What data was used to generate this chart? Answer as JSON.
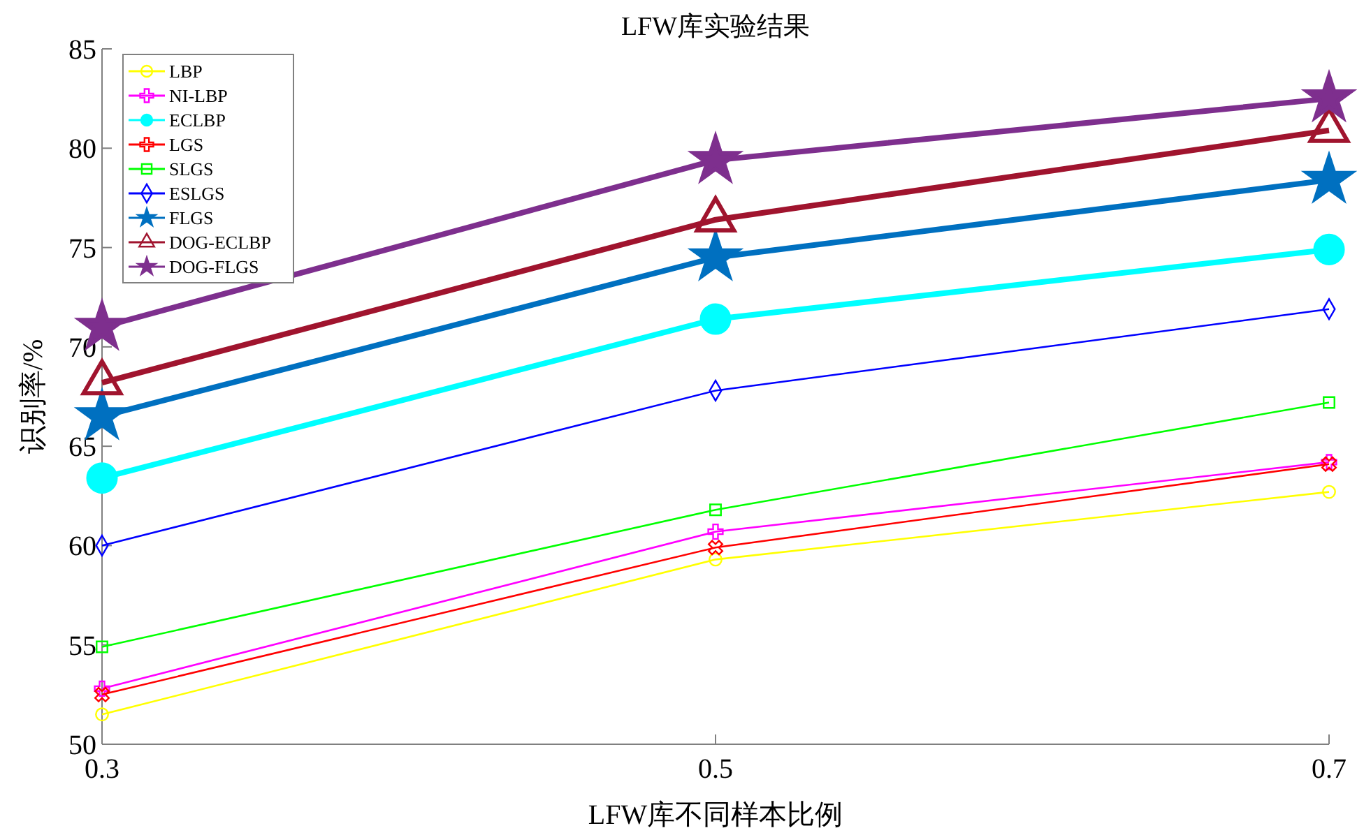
{
  "chart_data": {
    "type": "line",
    "title": "LFW库实验结果",
    "xlabel": "LFW库不同样本比例",
    "ylabel": "识别率/%",
    "x": [
      0.3,
      0.5,
      0.7
    ],
    "xlim": [
      0.3,
      0.7
    ],
    "xticks": [
      0.3,
      0.5,
      0.7
    ],
    "ylim": [
      50,
      85
    ],
    "yticks": [
      50,
      55,
      60,
      65,
      70,
      75,
      80,
      85
    ],
    "grid": false,
    "legend": "top left",
    "series": [
      {
        "name": "LBP",
        "color": "#ffff00",
        "marker": "circle",
        "values": [
          51.5,
          59.3,
          62.7
        ]
      },
      {
        "name": "NI-LBP",
        "color": "#ff00ff",
        "marker": "cross",
        "values": [
          52.8,
          60.7,
          64.2
        ]
      },
      {
        "name": "ECLBP",
        "color": "#00ffff",
        "marker": "circle",
        "values": [
          63.4,
          71.4,
          74.9
        ]
      },
      {
        "name": "LGS",
        "color": "#ff0000",
        "marker": "cross",
        "values": [
          52.5,
          59.9,
          64.1
        ]
      },
      {
        "name": "SLGS",
        "color": "#00ff00",
        "marker": "square",
        "values": [
          54.9,
          61.8,
          67.2
        ]
      },
      {
        "name": "ESLGS",
        "color": "#0000ff",
        "marker": "diamond",
        "values": [
          60.0,
          67.8,
          71.9
        ]
      },
      {
        "name": "FLGS",
        "color": "#0070c0",
        "marker": "star",
        "values": [
          66.5,
          74.5,
          78.4
        ]
      },
      {
        "name": "DOG-ECLBP",
        "color": "#a0142e",
        "marker": "triangle",
        "values": [
          68.2,
          76.4,
          80.9
        ]
      },
      {
        "name": "DOG-FLGS",
        "color": "#7e2f8e",
        "marker": "star",
        "values": [
          71.0,
          79.4,
          82.5
        ]
      }
    ]
  }
}
